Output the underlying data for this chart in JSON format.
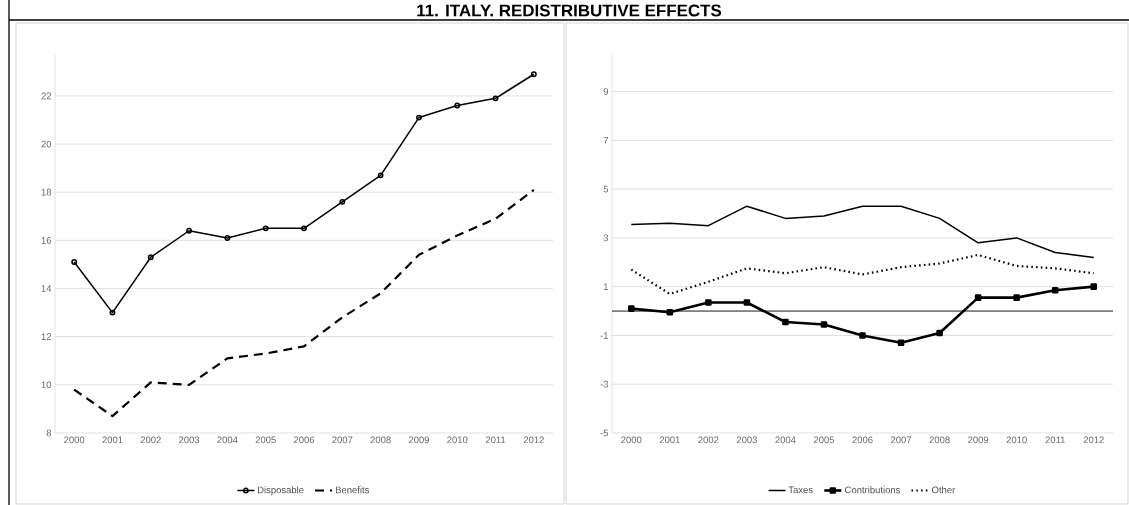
{
  "chart_data": [
    {
      "type": "line",
      "title": "11. ITALY. REDISTRIBUTIVE EFFECTS",
      "categories": [
        "2000",
        "2001",
        "2002",
        "2003",
        "2004",
        "2005",
        "2006",
        "2007",
        "2008",
        "2009",
        "2010",
        "2011",
        "2012"
      ],
      "series": [
        {
          "name": "Disposable",
          "color": "#000000",
          "marker": "circle",
          "line_style": "solid",
          "values": [
            15.1,
            13.0,
            15.3,
            16.4,
            16.1,
            16.5,
            16.5,
            17.6,
            18.7,
            21.1,
            21.6,
            21.9,
            22.9
          ]
        },
        {
          "name": "Benefits",
          "color": "#000000",
          "marker": "none",
          "line_style": "dashed",
          "values": [
            9.8,
            8.7,
            10.1,
            10.0,
            11.1,
            11.3,
            11.6,
            12.8,
            13.8,
            15.4,
            16.2,
            16.9,
            18.1
          ]
        }
      ],
      "ylim": [
        8,
        23.7
      ],
      "yticks": [
        8,
        10,
        12,
        14,
        16,
        18,
        20,
        22
      ],
      "grid": "y",
      "legend": "bottom"
    },
    {
      "type": "line",
      "categories": [
        "2000",
        "2001",
        "2002",
        "2003",
        "2004",
        "2005",
        "2006",
        "2007",
        "2008",
        "2009",
        "2010",
        "2011",
        "2012"
      ],
      "series": [
        {
          "name": "Taxes",
          "color": "#000000",
          "marker": "none",
          "line_style": "solid",
          "values": [
            3.55,
            3.6,
            3.5,
            4.3,
            3.8,
            3.9,
            4.3,
            4.3,
            3.8,
            2.8,
            3.0,
            2.4,
            2.2
          ]
        },
        {
          "name": "Contributions",
          "color": "#000000",
          "marker": "square",
          "line_style": "solid",
          "values": [
            0.1,
            -0.05,
            0.35,
            0.35,
            -0.45,
            -0.55,
            -1.0,
            -1.3,
            -0.9,
            0.55,
            0.55,
            0.85,
            1.0
          ]
        },
        {
          "name": "Other",
          "color": "#000000",
          "marker": "none",
          "line_style": "dotted",
          "values": [
            1.7,
            0.7,
            1.2,
            1.75,
            1.55,
            1.8,
            1.5,
            1.8,
            1.95,
            2.3,
            1.85,
            1.75,
            1.55
          ]
        }
      ],
      "ylim": [
        -5,
        10.5
      ],
      "yticks": [
        -5,
        -3,
        -1,
        1,
        3,
        5,
        7,
        9
      ],
      "grid": "y",
      "legend": "bottom",
      "ref_lines": [
        {
          "axis": "y",
          "value": 0,
          "color": "#000000"
        }
      ]
    }
  ]
}
